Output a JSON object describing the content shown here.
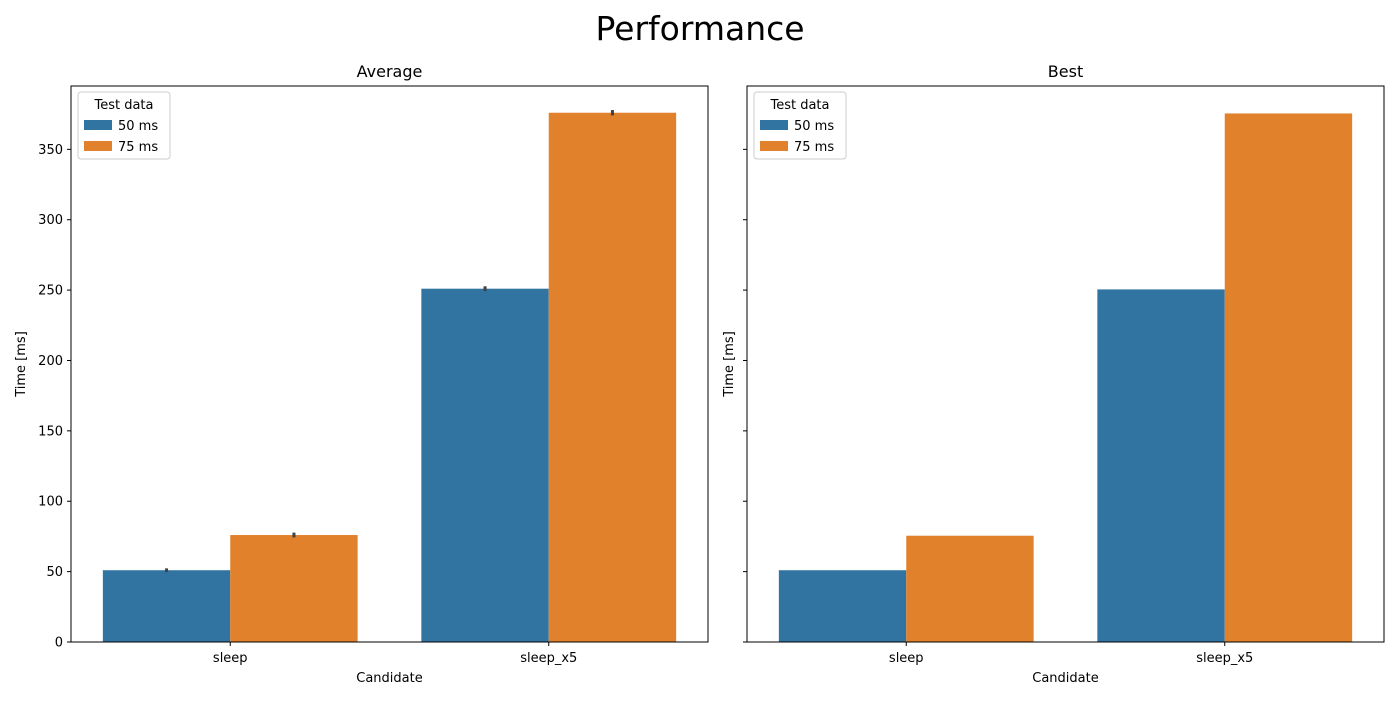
{
  "figure": {
    "title": "Performance"
  },
  "colors": {
    "series_50": "#3274a1",
    "series_75": "#e1812c",
    "errorbar": "#424242",
    "axis": "#000000"
  },
  "chart_data": [
    {
      "type": "bar",
      "title": "Average",
      "xlabel": "Candidate",
      "ylabel": "Time [ms]",
      "ylim": [
        0,
        395
      ],
      "yticks": [
        0,
        50,
        100,
        150,
        200,
        250,
        300,
        350
      ],
      "show_ytick_labels": true,
      "categories": [
        "sleep",
        "sleep_x5"
      ],
      "legend": {
        "title": "Test data",
        "placement": "top-left"
      },
      "series": [
        {
          "name": "50 ms",
          "values": [
            51,
            251
          ],
          "error": [
            0.6,
            1.0
          ]
        },
        {
          "name": "75 ms",
          "values": [
            76,
            376
          ],
          "error": [
            1.0,
            1.2
          ]
        }
      ],
      "grid": false
    },
    {
      "type": "bar",
      "title": "Best",
      "xlabel": "Candidate",
      "ylabel": "Time [ms]",
      "ylim": [
        0,
        395
      ],
      "yticks": [
        0,
        50,
        100,
        150,
        200,
        250,
        300,
        350
      ],
      "show_ytick_labels": false,
      "categories": [
        "sleep",
        "sleep_x5"
      ],
      "legend": {
        "title": "Test data",
        "placement": "top-left"
      },
      "series": [
        {
          "name": "50 ms",
          "values": [
            51,
            250.5
          ]
        },
        {
          "name": "75 ms",
          "values": [
            75.5,
            375.5
          ]
        }
      ],
      "grid": false
    }
  ]
}
